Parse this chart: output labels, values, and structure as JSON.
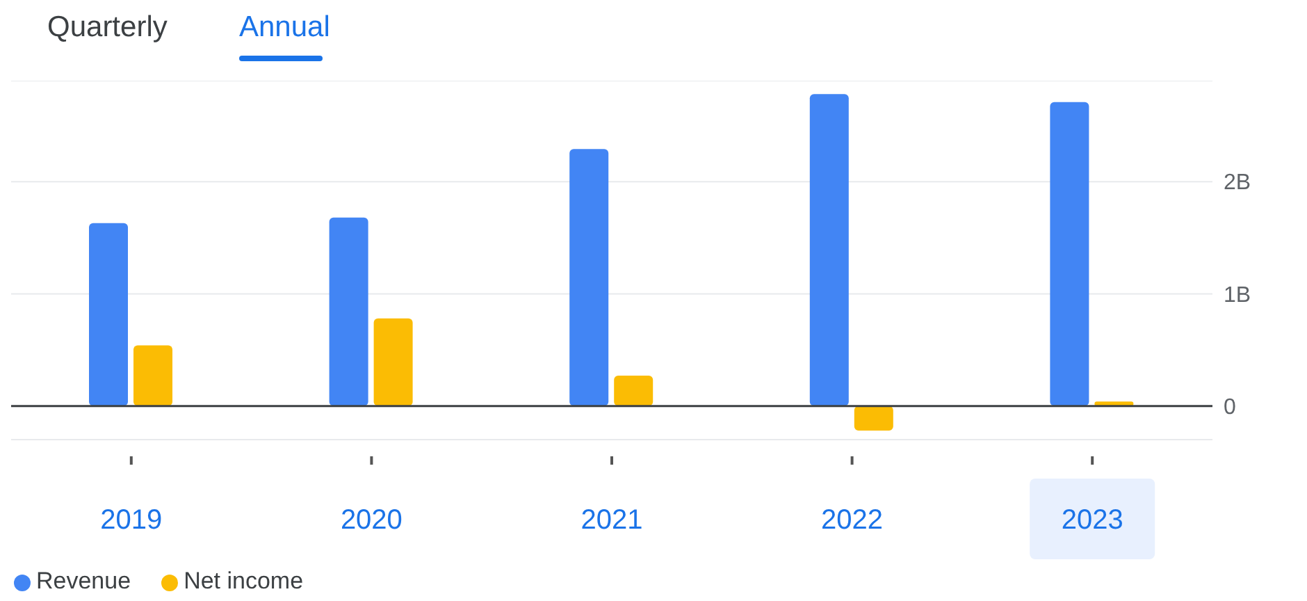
{
  "chart_data": {
    "type": "bar",
    "annotations": [
      "Quarterly",
      "Annual"
    ],
    "categories": [
      "2019",
      "2020",
      "2021",
      "2022",
      "2023"
    ],
    "series": [
      {
        "name": "Revenue",
        "color": "#4285f4",
        "values": [
          1.63,
          1.68,
          2.29,
          2.78,
          2.71
        ]
      },
      {
        "name": "Net income",
        "color": "#fbbc04",
        "values": [
          0.54,
          0.78,
          0.27,
          -0.22,
          0.04
        ]
      }
    ],
    "ylim": [
      -0.3,
      2.9
    ],
    "yticks": [
      0,
      {
        "value": 1,
        "label": "1B"
      },
      {
        "value": 2,
        "label": "2B"
      }
    ],
    "grid": "y",
    "legend": "bottom left"
  }
}
